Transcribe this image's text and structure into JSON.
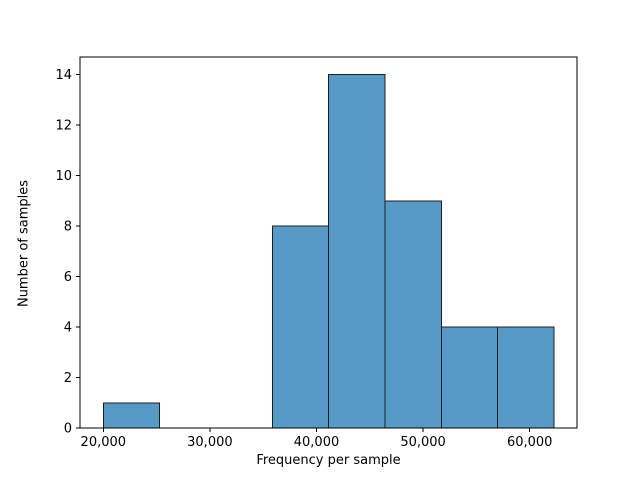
{
  "figure": {
    "background_color": "#ffffff"
  },
  "chart_data": {
    "type": "bar",
    "subtype": "histogram",
    "title": "",
    "xlabel": "Frequency per sample",
    "ylabel": "Number of samples",
    "bar_fill_color": "#5799C7",
    "bar_edge_color": "#1f1f1f",
    "spine_color": "#000000",
    "grid": "off",
    "legend": "none",
    "xlim": [
      17810,
      64440
    ],
    "ylim": [
      0,
      14.7
    ],
    "x_ticks": [
      20000,
      30000,
      40000,
      50000,
      60000
    ],
    "x_tick_labels": [
      "20,000",
      "30,000",
      "40,000",
      "50,000",
      "60,000"
    ],
    "y_ticks": [
      0,
      2,
      4,
      6,
      8,
      10,
      12,
      14
    ],
    "y_tick_labels": [
      "0",
      "2",
      "4",
      "6",
      "8",
      "10",
      "12",
      "14"
    ],
    "bins": [
      {
        "x0": 20000,
        "x1": 25285,
        "count": 1
      },
      {
        "x0": 25285,
        "x1": 30570,
        "count": 0
      },
      {
        "x0": 30570,
        "x1": 35855,
        "count": 0
      },
      {
        "x0": 35855,
        "x1": 41140,
        "count": 8
      },
      {
        "x0": 41140,
        "x1": 46425,
        "count": 14
      },
      {
        "x0": 46425,
        "x1": 51710,
        "count": 9
      },
      {
        "x0": 51710,
        "x1": 56995,
        "count": 4
      },
      {
        "x0": 56995,
        "x1": 62280,
        "count": 4
      }
    ],
    "total_samples": 40
  }
}
